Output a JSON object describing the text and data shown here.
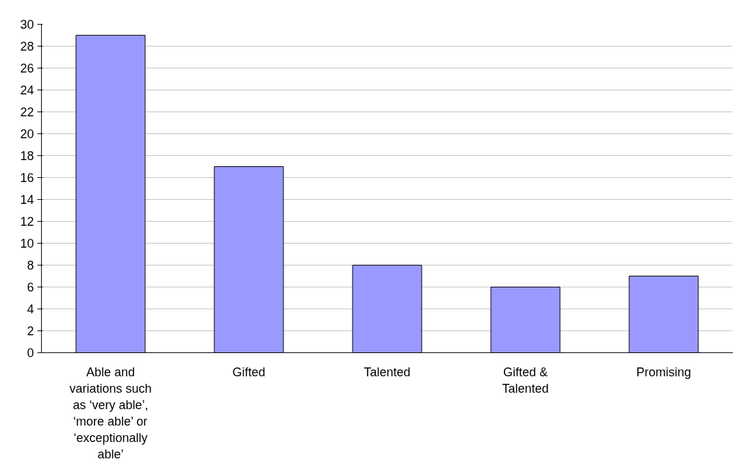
{
  "chart_data": {
    "type": "bar",
    "categories": [
      "Able and variations such as ‘very able’, ‘more able’ or ‘exceptionally able’",
      "Gifted",
      "Talented",
      "Gifted & Talented",
      "Promising"
    ],
    "values": [
      29,
      17,
      8,
      6,
      7
    ],
    "color": "#9999ff",
    "ylim": [
      0,
      30
    ],
    "yticks": [
      0,
      2,
      4,
      6,
      8,
      10,
      12,
      14,
      16,
      18,
      20,
      22,
      24,
      26,
      28,
      30
    ],
    "grid": "y"
  }
}
